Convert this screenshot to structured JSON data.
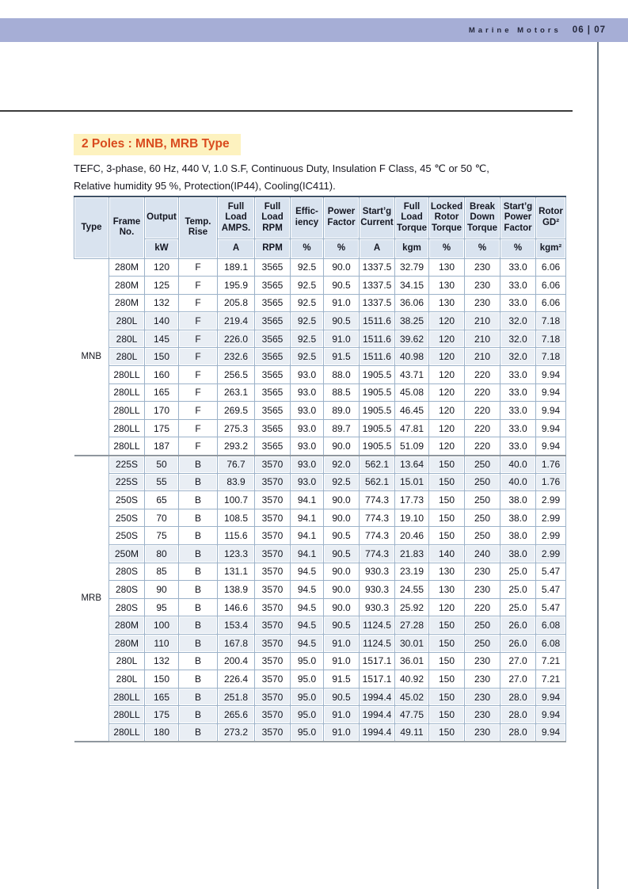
{
  "page_header": {
    "brand": "Marine Motors",
    "page_numbers": "06 | 07",
    "bar_color": "#a6aed6"
  },
  "section": {
    "title": "2 Poles : MNB, MRB Type",
    "title_color": "#d94b1e",
    "highlight_color": "#fdf2bf",
    "description_line1": "TEFC, 3-phase, 60 Hz, 440 V, 1.0 S.F, Continuous Duty, Insulation F Class, 45 ℃ or 50 ℃,",
    "description_line2": "Relative humidity 95 %, Protection(IP44), Cooling(IC411)."
  },
  "table": {
    "header_bg": "#d9e3ef",
    "shaded_row_color": "#e9eef4",
    "border_color": "#9cb2c9",
    "columns": [
      {
        "label": "Type",
        "unit": ""
      },
      {
        "label": "Frame\nNo.",
        "unit": ""
      },
      {
        "label": "Output",
        "unit": "kW"
      },
      {
        "label": "Temp.\nRise",
        "unit": ""
      },
      {
        "label": "Full\nLoad\nAMPS.",
        "unit": "A"
      },
      {
        "label": "Full\nLoad\nRPM",
        "unit": "RPM"
      },
      {
        "label": "Effic-\niency",
        "unit": "%"
      },
      {
        "label": "Power\nFactor",
        "unit": "%"
      },
      {
        "label": "Start’g\nCurrent",
        "unit": "A"
      },
      {
        "label": "Full\nLoad\nTorque",
        "unit": "kgm"
      },
      {
        "label": "Locked\nRotor\nTorque",
        "unit": "%"
      },
      {
        "label": "Break\nDown\nTorque",
        "unit": "%"
      },
      {
        "label": "Start’g\nPower\nFactor",
        "unit": "%"
      },
      {
        "label": "Rotor\nGD²",
        "unit": "kgm²"
      }
    ],
    "groups": [
      {
        "type": "MNB",
        "rows": [
          [
            "280M",
            "120",
            "F",
            "189.1",
            "3565",
            "92.5",
            "90.0",
            "1337.5",
            "32.79",
            "130",
            "230",
            "33.0",
            "6.06"
          ],
          [
            "280M",
            "125",
            "F",
            "195.9",
            "3565",
            "92.5",
            "90.5",
            "1337.5",
            "34.15",
            "130",
            "230",
            "33.0",
            "6.06"
          ],
          [
            "280M",
            "132",
            "F",
            "205.8",
            "3565",
            "92.5",
            "91.0",
            "1337.5",
            "36.06",
            "130",
            "230",
            "33.0",
            "6.06"
          ],
          [
            "280L",
            "140",
            "F",
            "219.4",
            "3565",
            "92.5",
            "90.5",
            "1511.6",
            "38.25",
            "120",
            "210",
            "32.0",
            "7.18"
          ],
          [
            "280L",
            "145",
            "F",
            "226.0",
            "3565",
            "92.5",
            "91.0",
            "1511.6",
            "39.62",
            "120",
            "210",
            "32.0",
            "7.18"
          ],
          [
            "280L",
            "150",
            "F",
            "232.6",
            "3565",
            "92.5",
            "91.5",
            "1511.6",
            "40.98",
            "120",
            "210",
            "32.0",
            "7.18"
          ],
          [
            "280LL",
            "160",
            "F",
            "256.5",
            "3565",
            "93.0",
            "88.0",
            "1905.5",
            "43.71",
            "120",
            "220",
            "33.0",
            "9.94"
          ],
          [
            "280LL",
            "165",
            "F",
            "263.1",
            "3565",
            "93.0",
            "88.5",
            "1905.5",
            "45.08",
            "120",
            "220",
            "33.0",
            "9.94"
          ],
          [
            "280LL",
            "170",
            "F",
            "269.5",
            "3565",
            "93.0",
            "89.0",
            "1905.5",
            "46.45",
            "120",
            "220",
            "33.0",
            "9.94"
          ],
          [
            "280LL",
            "175",
            "F",
            "275.3",
            "3565",
            "93.0",
            "89.7",
            "1905.5",
            "47.81",
            "120",
            "220",
            "33.0",
            "9.94"
          ],
          [
            "280LL",
            "187",
            "F",
            "293.2",
            "3565",
            "93.0",
            "90.0",
            "1905.5",
            "51.09",
            "120",
            "220",
            "33.0",
            "9.94"
          ]
        ]
      },
      {
        "type": "MRB",
        "rows": [
          [
            "225S",
            "50",
            "B",
            "76.7",
            "3570",
            "93.0",
            "92.0",
            "562.1",
            "13.64",
            "150",
            "250",
            "40.0",
            "1.76"
          ],
          [
            "225S",
            "55",
            "B",
            "83.9",
            "3570",
            "93.0",
            "92.5",
            "562.1",
            "15.01",
            "150",
            "250",
            "40.0",
            "1.76"
          ],
          [
            "250S",
            "65",
            "B",
            "100.7",
            "3570",
            "94.1",
            "90.0",
            "774.3",
            "17.73",
            "150",
            "250",
            "38.0",
            "2.99"
          ],
          [
            "250S",
            "70",
            "B",
            "108.5",
            "3570",
            "94.1",
            "90.0",
            "774.3",
            "19.10",
            "150",
            "250",
            "38.0",
            "2.99"
          ],
          [
            "250S",
            "75",
            "B",
            "115.6",
            "3570",
            "94.1",
            "90.5",
            "774.3",
            "20.46",
            "150",
            "250",
            "38.0",
            "2.99"
          ],
          [
            "250M",
            "80",
            "B",
            "123.3",
            "3570",
            "94.1",
            "90.5",
            "774.3",
            "21.83",
            "140",
            "240",
            "38.0",
            "2.99"
          ],
          [
            "280S",
            "85",
            "B",
            "131.1",
            "3570",
            "94.5",
            "90.0",
            "930.3",
            "23.19",
            "130",
            "230",
            "25.0",
            "5.47"
          ],
          [
            "280S",
            "90",
            "B",
            "138.9",
            "3570",
            "94.5",
            "90.0",
            "930.3",
            "24.55",
            "130",
            "230",
            "25.0",
            "5.47"
          ],
          [
            "280S",
            "95",
            "B",
            "146.6",
            "3570",
            "94.5",
            "90.0",
            "930.3",
            "25.92",
            "120",
            "220",
            "25.0",
            "5.47"
          ],
          [
            "280M",
            "100",
            "B",
            "153.4",
            "3570",
            "94.5",
            "90.5",
            "1124.5",
            "27.28",
            "150",
            "250",
            "26.0",
            "6.08"
          ],
          [
            "280M",
            "110",
            "B",
            "167.8",
            "3570",
            "94.5",
            "91.0",
            "1124.5",
            "30.01",
            "150",
            "250",
            "26.0",
            "6.08"
          ],
          [
            "280L",
            "132",
            "B",
            "200.4",
            "3570",
            "95.0",
            "91.0",
            "1517.1",
            "36.01",
            "150",
            "230",
            "27.0",
            "7.21"
          ],
          [
            "280L",
            "150",
            "B",
            "226.4",
            "3570",
            "95.0",
            "91.5",
            "1517.1",
            "40.92",
            "150",
            "230",
            "27.0",
            "7.21"
          ],
          [
            "280LL",
            "165",
            "B",
            "251.8",
            "3570",
            "95.0",
            "90.5",
            "1994.4",
            "45.02",
            "150",
            "230",
            "28.0",
            "9.94"
          ],
          [
            "280LL",
            "175",
            "B",
            "265.6",
            "3570",
            "95.0",
            "91.0",
            "1994.4",
            "47.75",
            "150",
            "230",
            "28.0",
            "9.94"
          ],
          [
            "280LL",
            "180",
            "B",
            "273.2",
            "3570",
            "95.0",
            "91.0",
            "1994.4",
            "49.11",
            "150",
            "230",
            "28.0",
            "9.94"
          ]
        ]
      }
    ]
  }
}
